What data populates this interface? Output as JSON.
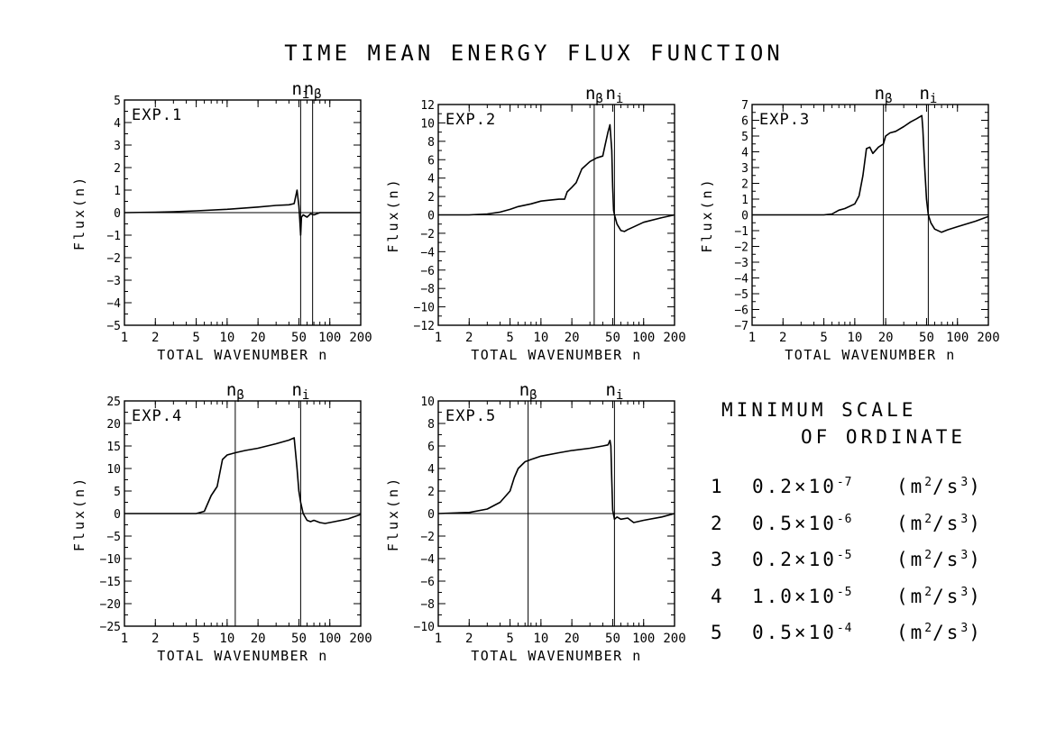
{
  "title": "TIME MEAN ENERGY FLUX FUNCTION",
  "legend_box": {
    "title_line1": "MINIMUM SCALE",
    "title_line2": "OF ORDINATE",
    "rows": [
      {
        "n": "1",
        "mantissa": "0.2×10",
        "exp": "-7",
        "unit_pre": "(m",
        "unit_exp1": "2",
        "unit_mid": "/s",
        "unit_exp2": "3",
        "unit_post": ")"
      },
      {
        "n": "2",
        "mantissa": "0.5×10",
        "exp": "-6",
        "unit_pre": "(m",
        "unit_exp1": "2",
        "unit_mid": "/s",
        "unit_exp2": "3",
        "unit_post": ")"
      },
      {
        "n": "3",
        "mantissa": "0.2×10",
        "exp": "-5",
        "unit_pre": "(m",
        "unit_exp1": "2",
        "unit_mid": "/s",
        "unit_exp2": "3",
        "unit_post": ")"
      },
      {
        "n": "4",
        "mantissa": "1.0×10",
        "exp": "-5",
        "unit_pre": "(m",
        "unit_exp1": "2",
        "unit_mid": "/s",
        "unit_exp2": "3",
        "unit_post": ")"
      },
      {
        "n": "5",
        "mantissa": "0.5×10",
        "exp": "-4",
        "unit_pre": "(m",
        "unit_exp1": "2",
        "unit_mid": "/s",
        "unit_exp2": "3",
        "unit_post": ")"
      }
    ]
  },
  "chart_data": [
    {
      "type": "line",
      "label": "EXP.1",
      "xlabel": "TOTAL WAVENUMBER n",
      "ylabel": "Flux(n)",
      "xscale": "log",
      "xlim": [
        1,
        200
      ],
      "ylim": [
        -5,
        5
      ],
      "xticks": [
        1,
        2,
        5,
        10,
        20,
        50,
        100,
        200
      ],
      "yticks": [
        -5,
        -4,
        -3,
        -2,
        -1,
        0,
        1,
        2,
        3,
        4,
        5
      ],
      "vlines": [
        {
          "x": 52,
          "label": "n",
          "sub": "i"
        },
        {
          "x": 68,
          "label": "n",
          "sub": "β"
        }
      ],
      "series": [
        {
          "x": [
            1,
            2,
            3,
            5,
            10,
            20,
            30,
            40,
            45,
            48,
            50,
            51,
            52,
            53,
            55,
            60,
            65,
            70,
            80,
            100,
            150,
            200
          ],
          "y": [
            0,
            0.02,
            0.04,
            0.08,
            0.15,
            0.25,
            0.32,
            0.35,
            0.4,
            1.0,
            0.3,
            -0.3,
            -1.0,
            -0.2,
            -0.1,
            -0.2,
            -0.05,
            -0.1,
            0,
            0,
            0,
            0
          ]
        }
      ]
    },
    {
      "type": "line",
      "label": "EXP.2",
      "xlabel": "TOTAL WAVENUMBER n",
      "ylabel": "Flux(n)",
      "xscale": "log",
      "xlim": [
        1,
        200
      ],
      "ylim": [
        -12,
        12
      ],
      "xticks": [
        1,
        2,
        5,
        10,
        20,
        50,
        100,
        200
      ],
      "yticks": [
        -12,
        -10,
        -8,
        -6,
        -4,
        -2,
        0,
        2,
        4,
        6,
        8,
        10,
        12
      ],
      "vlines": [
        {
          "x": 33,
          "label": "n",
          "sub": "β"
        },
        {
          "x": 52,
          "label": "n",
          "sub": "i"
        }
      ],
      "series": [
        {
          "x": [
            1,
            2,
            3,
            4,
            5,
            6,
            8,
            10,
            12,
            15,
            17,
            18,
            20,
            22,
            25,
            30,
            35,
            40,
            42,
            45,
            47,
            49,
            50,
            51,
            52,
            55,
            60,
            65,
            70,
            80,
            100,
            150,
            200
          ],
          "y": [
            0,
            0,
            0.1,
            0.3,
            0.6,
            0.9,
            1.2,
            1.5,
            1.6,
            1.7,
            1.7,
            2.5,
            3.0,
            3.5,
            5.0,
            5.8,
            6.2,
            6.4,
            7.5,
            9.0,
            9.8,
            7.0,
            3.0,
            0.5,
            0,
            -1.0,
            -1.7,
            -1.8,
            -1.6,
            -1.3,
            -0.8,
            -0.3,
            0
          ]
        }
      ]
    },
    {
      "type": "line",
      "label": "EXP.3",
      "xlabel": "TOTAL WAVENUMBER n",
      "ylabel": "Flux(n)",
      "xscale": "log",
      "xlim": [
        1,
        200
      ],
      "ylim": [
        -7,
        7
      ],
      "xticks": [
        1,
        2,
        5,
        10,
        20,
        50,
        100,
        200
      ],
      "yticks": [
        -7,
        -6,
        -5,
        -4,
        -3,
        -2,
        -1,
        0,
        1,
        2,
        3,
        4,
        5,
        6,
        7
      ],
      "vlines": [
        {
          "x": 19,
          "label": "n",
          "sub": "β"
        },
        {
          "x": 52,
          "label": "n",
          "sub": "i"
        }
      ],
      "series": [
        {
          "x": [
            1,
            3,
            5,
            6,
            7,
            8,
            10,
            11,
            12,
            13,
            14,
            15,
            17,
            19,
            20,
            22,
            25,
            30,
            35,
            40,
            45,
            46,
            48,
            50,
            52,
            55,
            60,
            70,
            80,
            100,
            150,
            200
          ],
          "y": [
            0,
            0,
            0,
            0.05,
            0.3,
            0.4,
            0.7,
            1.2,
            2.5,
            4.2,
            4.3,
            3.9,
            4.3,
            4.5,
            5.0,
            5.2,
            5.3,
            5.6,
            5.9,
            6.1,
            6.3,
            5.5,
            3.0,
            1.0,
            0,
            -0.5,
            -0.9,
            -1.1,
            -0.95,
            -0.75,
            -0.4,
            -0.1
          ]
        }
      ]
    },
    {
      "type": "line",
      "label": "EXP.4",
      "xlabel": "TOTAL WAVENUMBER n",
      "ylabel": "Flux(n)",
      "xscale": "log",
      "xlim": [
        1,
        200
      ],
      "ylim": [
        -25,
        25
      ],
      "xticks": [
        1,
        2,
        5,
        10,
        20,
        50,
        100,
        200
      ],
      "yticks": [
        -25,
        -20,
        -15,
        -10,
        -5,
        0,
        5,
        10,
        15,
        20,
        25
      ],
      "vlines": [
        {
          "x": 12,
          "label": "n",
          "sub": "β"
        },
        {
          "x": 52,
          "label": "n",
          "sub": "i"
        }
      ],
      "series": [
        {
          "x": [
            1,
            3,
            5,
            6,
            7,
            8,
            9,
            10,
            12,
            15,
            20,
            30,
            40,
            45,
            48,
            50,
            52,
            55,
            60,
            65,
            70,
            80,
            90,
            100,
            150,
            200
          ],
          "y": [
            0,
            0,
            0,
            0.5,
            4.0,
            6.0,
            12.0,
            13.0,
            13.5,
            14.0,
            14.5,
            15.5,
            16.3,
            16.8,
            10.0,
            5.0,
            2.5,
            0,
            -1.5,
            -1.8,
            -1.5,
            -2.0,
            -2.2,
            -2.0,
            -1.2,
            -0.2
          ]
        }
      ]
    },
    {
      "type": "line",
      "label": "EXP.5",
      "xlabel": "TOTAL WAVENUMBER n",
      "ylabel": "Flux(n)",
      "xscale": "log",
      "xlim": [
        1,
        200
      ],
      "ylim": [
        -10,
        10
      ],
      "xticks": [
        1,
        2,
        5,
        10,
        20,
        50,
        100,
        200
      ],
      "yticks": [
        -10,
        -8,
        -6,
        -4,
        -2,
        0,
        2,
        4,
        6,
        8,
        10
      ],
      "vlines": [
        {
          "x": 7.5,
          "label": "n",
          "sub": "β"
        },
        {
          "x": 52,
          "label": "n",
          "sub": "i"
        }
      ],
      "series": [
        {
          "x": [
            1,
            2,
            3,
            4,
            5,
            5.5,
            6,
            7,
            8,
            10,
            15,
            20,
            30,
            40,
            45,
            47,
            48,
            49,
            50,
            52,
            55,
            60,
            70,
            80,
            100,
            150,
            200
          ],
          "y": [
            0,
            0.1,
            0.4,
            1.0,
            2.0,
            3.2,
            4.0,
            4.6,
            4.8,
            5.1,
            5.4,
            5.6,
            5.8,
            6.0,
            6.1,
            6.5,
            6.0,
            3.0,
            0.3,
            -0.5,
            -0.3,
            -0.5,
            -0.4,
            -0.8,
            -0.6,
            -0.3,
            0
          ]
        }
      ]
    }
  ]
}
